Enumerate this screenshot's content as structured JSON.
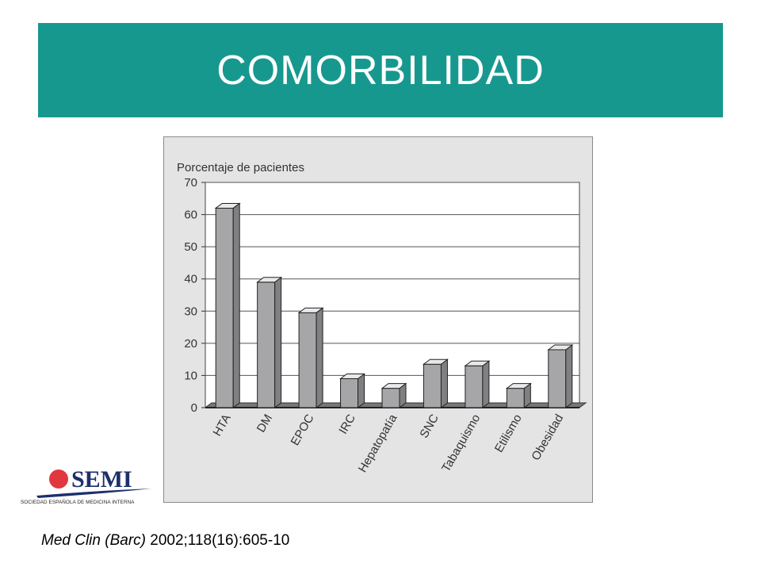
{
  "title": "COMORBILIDAD",
  "colors": {
    "banner": "#17988f",
    "bar_front": "#a6a6a8",
    "bar_side": "#808082",
    "bar_top": "#e9e9eb",
    "panel": "#e4e4e4",
    "plot": "#ffffff",
    "logo_red": "#e0383e",
    "logo_navy": "#1d2f6b"
  },
  "chart_data": {
    "type": "bar",
    "ylabel": "Porcentaje de pacientes",
    "xlabel": "",
    "ylim": [
      0,
      70
    ],
    "yticks": [
      0,
      10,
      20,
      30,
      40,
      50,
      60,
      70
    ],
    "grid": true,
    "style": "3d",
    "categories": [
      "HTA",
      "DM",
      "EPOC",
      "IRC",
      "Hepatopatía",
      "SNC",
      "Tabaquismo",
      "Etilismo",
      "Obesidad"
    ],
    "values": [
      62,
      39,
      29.5,
      9,
      6,
      13.5,
      13,
      6,
      18
    ]
  },
  "logo": {
    "name": "SEMI",
    "caption": "SOCIEDAD ESPAÑOLA DE MEDICINA INTERNA"
  },
  "citation": {
    "journal": "Med Clin (Barc)",
    "ref": " 2002;118(16):605-10"
  }
}
